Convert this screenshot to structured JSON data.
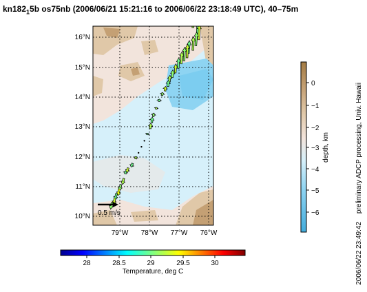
{
  "title": {
    "prefix": "kn182",
    "subscript": "1",
    "suffix": "5b os75nb (2006/06/21 15:21:16 to 2006/06/22 23:18:49 UTC), 40–75m"
  },
  "map": {
    "lat_ticks": [
      "10°N",
      "11°N",
      "12°N",
      "13°N",
      "14°N",
      "15°N",
      "16°N"
    ],
    "lon_ticks": [
      "79°W",
      "78°W",
      "77°W",
      "76°W"
    ],
    "scale_label": "0.5 m/s",
    "lat_range": [
      9.75,
      16.35
    ],
    "lon_range": [
      -79.95,
      -75.85
    ]
  },
  "depth_colorbar": {
    "label": "depth, km",
    "ticks": [
      "0",
      "−1",
      "−2",
      "−3",
      "−4",
      "−5",
      "−6"
    ],
    "colors": [
      "#a47c44",
      "#c4a074",
      "#e0c8a8",
      "#f2e4dc",
      "#d6f0fa",
      "#8ed4f2",
      "#42acdc"
    ]
  },
  "temperature_colorbar": {
    "label": "Temperature, deg C",
    "ticks": [
      "28",
      "28.5",
      "29",
      "29.5",
      "30"
    ]
  },
  "side_notes": {
    "processing": "preliminary ADCP processing,  Univ. Hawaii",
    "timestamp": "2006/06/22 23:49:42"
  },
  "track": [
    {
      "lat": 16.3,
      "lon": -76.55,
      "u": 0.05,
      "v": 0.55,
      "temp": 29.2
    },
    {
      "lat": 16.1,
      "lon": -76.4,
      "u": 0.02,
      "v": 0.5,
      "temp": 29.0
    },
    {
      "lat": 15.9,
      "lon": -76.35,
      "u": 0.02,
      "v": 0.5,
      "temp": 29.3
    },
    {
      "lat": 15.7,
      "lon": -76.45,
      "u": 0.03,
      "v": 0.45,
      "temp": 29.1
    },
    {
      "lat": 15.55,
      "lon": -76.55,
      "u": 0.02,
      "v": 0.45,
      "temp": 29.2
    },
    {
      "lat": 15.45,
      "lon": -76.7,
      "u": 0.03,
      "v": 0.42,
      "temp": 29.0
    },
    {
      "lat": 15.3,
      "lon": -76.75,
      "u": 0.02,
      "v": 0.45,
      "temp": 29.3
    },
    {
      "lat": 15.2,
      "lon": -76.85,
      "u": 0.02,
      "v": 0.45,
      "temp": 29.1
    },
    {
      "lat": 15.1,
      "lon": -76.95,
      "u": 0.03,
      "v": 0.4,
      "temp": 29.2
    },
    {
      "lat": 14.95,
      "lon": -77.05,
      "u": 0.02,
      "v": 0.35,
      "temp": 29.0
    },
    {
      "lat": 14.8,
      "lon": -77.15,
      "u": 0.02,
      "v": 0.3,
      "temp": 29.3
    },
    {
      "lat": 14.65,
      "lon": -77.25,
      "u": 0.02,
      "v": 0.25,
      "temp": 29.1
    },
    {
      "lat": 14.5,
      "lon": -77.35,
      "u": 0.02,
      "v": 0.22,
      "temp": 29.2
    },
    {
      "lat": 14.35,
      "lon": -77.4,
      "u": 0.02,
      "v": 0.2,
      "temp": 29.0
    },
    {
      "lat": 14.2,
      "lon": -77.5,
      "u": 0.02,
      "v": 0.15,
      "temp": 29.3
    },
    {
      "lat": 14.05,
      "lon": -77.6,
      "u": 0.02,
      "v": 0.1,
      "temp": 29.1
    },
    {
      "lat": 13.85,
      "lon": -77.7,
      "u": 0.01,
      "v": 0.08,
      "temp": 29.0
    },
    {
      "lat": 13.6,
      "lon": -77.8,
      "u": 0.01,
      "v": 0.06,
      "temp": 29.2
    },
    {
      "lat": 13.35,
      "lon": -77.9,
      "u": 0.02,
      "v": 0.12,
      "temp": 29.1
    },
    {
      "lat": 13.15,
      "lon": -77.95,
      "u": 0.02,
      "v": 0.18,
      "temp": 29.0
    },
    {
      "lat": 12.95,
      "lon": -78.0,
      "u": 0.02,
      "v": 0.18,
      "temp": 29.2
    },
    {
      "lat": 12.75,
      "lon": -78.1,
      "u": 0.01,
      "v": 0.05,
      "temp": 29.0
    },
    {
      "lat": 12.55,
      "lon": -78.2,
      "u": 0.0,
      "v": 0.03,
      "temp": 29.1
    },
    {
      "lat": 12.35,
      "lon": -78.3,
      "u": 0.0,
      "v": 0.03,
      "temp": 29.0
    },
    {
      "lat": 12.15,
      "lon": -78.4,
      "u": 0.0,
      "v": 0.03,
      "temp": 29.0
    },
    {
      "lat": 11.95,
      "lon": -78.5,
      "u": 0.02,
      "v": 0.08,
      "temp": 29.2
    },
    {
      "lat": 11.8,
      "lon": -78.6,
      "u": -0.05,
      "v": -0.12,
      "temp": 29.0
    },
    {
      "lat": 11.65,
      "lon": -78.75,
      "u": -0.05,
      "v": -0.15,
      "temp": 29.3
    },
    {
      "lat": 11.45,
      "lon": -78.85,
      "u": 0.02,
      "v": 0.1,
      "temp": 29.0
    },
    {
      "lat": 11.3,
      "lon": -78.9,
      "u": -0.05,
      "v": -0.2,
      "temp": 29.2
    },
    {
      "lat": 11.1,
      "lon": -79.0,
      "u": -0.05,
      "v": -0.2,
      "temp": 29.1
    },
    {
      "lat": 10.95,
      "lon": -79.05,
      "u": -0.05,
      "v": -0.22,
      "temp": 29.4
    },
    {
      "lat": 10.8,
      "lon": -79.15,
      "u": -0.05,
      "v": -0.22,
      "temp": 29.0
    },
    {
      "lat": 10.65,
      "lon": -79.2,
      "u": -0.05,
      "v": -0.22,
      "temp": 29.3
    },
    {
      "lat": 10.5,
      "lon": -79.3,
      "u": -0.05,
      "v": -0.22,
      "temp": 29.1
    }
  ]
}
